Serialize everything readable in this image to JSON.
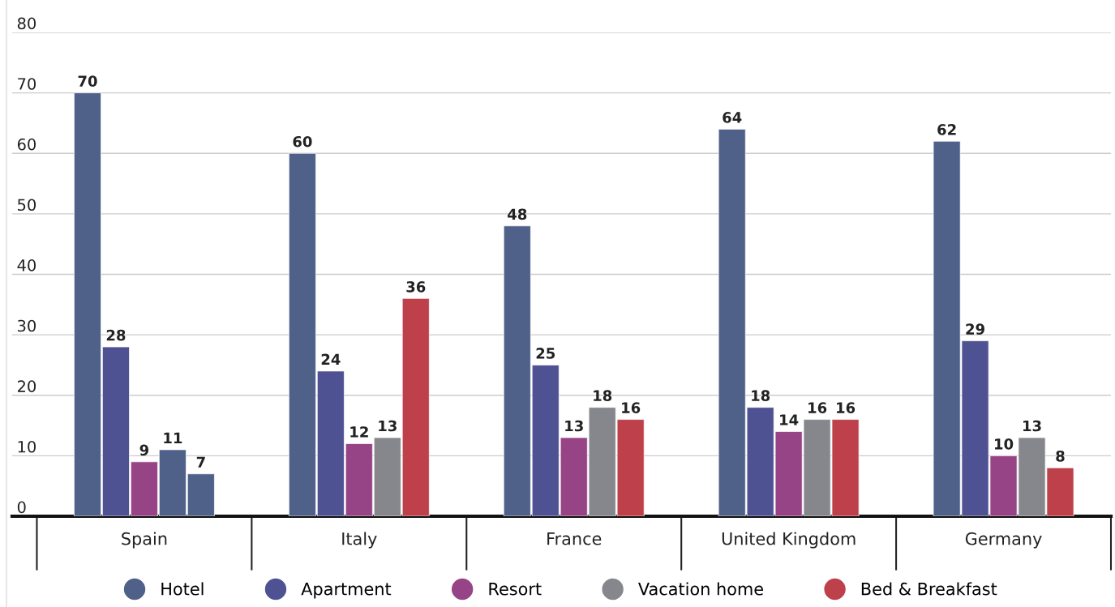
{
  "chart_data": {
    "type": "bar",
    "categories": [
      "Spain",
      "Italy",
      "France",
      "United Kingdom",
      "Germany"
    ],
    "series": [
      {
        "name": "Hotel",
        "color": "#4f6189",
        "values": [
          70,
          60,
          48,
          64,
          62
        ]
      },
      {
        "name": "Apartment",
        "color": "#4f5292",
        "values": [
          28,
          24,
          25,
          18,
          29
        ]
      },
      {
        "name": "Resort",
        "color": "#974486",
        "values": [
          9,
          12,
          13,
          14,
          10
        ]
      },
      {
        "name": "Vacation home",
        "color": "#85878c",
        "colors": [
          "#4f6189",
          "#85878c",
          "#85878c",
          "#85878c",
          "#85878c"
        ],
        "values": [
          11,
          13,
          18,
          16,
          13
        ]
      },
      {
        "name": "Bed & Breakfast",
        "color": "#bd404a",
        "colors": [
          "#4f6189",
          "#bd404a",
          "#bd404a",
          "#bd404a",
          "#bd404a"
        ],
        "values": [
          7,
          36,
          16,
          16,
          8
        ]
      }
    ],
    "ylim": [
      0,
      80
    ],
    "yticks": [
      0,
      10,
      20,
      30,
      40,
      50,
      60,
      70,
      80
    ],
    "grid": "y",
    "legend": "bottom",
    "data_labels": true
  }
}
